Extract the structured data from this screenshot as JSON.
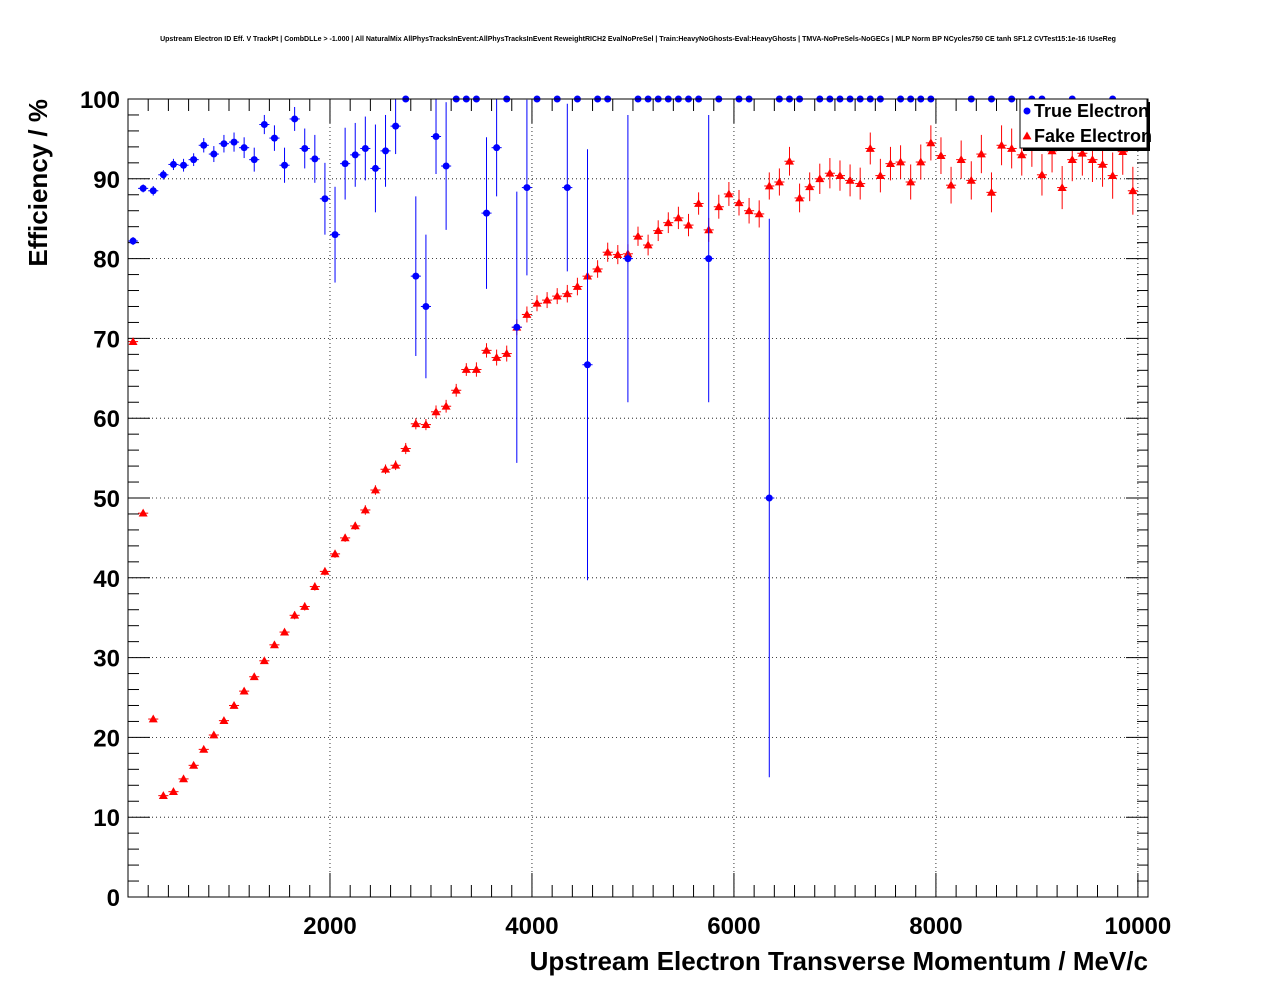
{
  "chart_data": {
    "type": "scatter",
    "title": "Upstream Electron ID Eff. V TrackPt | CombDLLe > -1.000 | All NaturalMix AllPhysTracksInEvent:AllPhysTracksInEvent ReweightRICH2 EvalNoPreSel | Train:HeavyNoGhosts-Eval:HeavyGhosts | TMVA-NoPreSels-NoGECs | MLP Norm BP NCycles750 CE tanh SF1.2 CVTest15:1e-16 !UseReg",
    "xlabel": "Upstream Electron Transverse Momentum / MeV/c",
    "ylabel": "Efficiency / %",
    "xlim": [
      0,
      10100
    ],
    "ylim": [
      0,
      100
    ],
    "x_ticks": [
      "2000",
      "4000",
      "6000",
      "8000",
      "10000"
    ],
    "y_ticks": [
      "0",
      "10",
      "20",
      "30",
      "40",
      "50",
      "60",
      "70",
      "80",
      "90",
      "100"
    ],
    "grid": true,
    "legend_position": "top-right",
    "series": [
      {
        "name": "True Electron",
        "color": "#0000ff",
        "marker": "circle",
        "points": [
          [
            50,
            82.2,
            0.5
          ],
          [
            150,
            88.8,
            0.5
          ],
          [
            250,
            88.5,
            0.6
          ],
          [
            350,
            90.5,
            0.6
          ],
          [
            450,
            91.8,
            0.7
          ],
          [
            550,
            91.7,
            0.8
          ],
          [
            650,
            92.4,
            0.8
          ],
          [
            750,
            94.2,
            0.9
          ],
          [
            850,
            93.1,
            1.0
          ],
          [
            950,
            94.4,
            1.1
          ],
          [
            1050,
            94.6,
            1.2
          ],
          [
            1150,
            93.9,
            1.3
          ],
          [
            1250,
            92.4,
            1.5
          ],
          [
            1350,
            96.8,
            1.2
          ],
          [
            1450,
            95.1,
            1.6
          ],
          [
            1550,
            91.7,
            2.2
          ],
          [
            1650,
            97.5,
            1.5
          ],
          [
            1750,
            93.8,
            2.5
          ],
          [
            1850,
            92.5,
            3.0
          ],
          [
            1950,
            87.5,
            4.5
          ],
          [
            2050,
            83.0,
            6.0
          ],
          [
            2150,
            91.9,
            4.5
          ],
          [
            2250,
            93.0,
            4.0
          ],
          [
            2350,
            93.8,
            4.0
          ],
          [
            2450,
            91.3,
            5.5
          ],
          [
            2550,
            93.5,
            4.5
          ],
          [
            2650,
            96.6,
            3.5
          ],
          [
            2750,
            100,
            0
          ],
          [
            2850,
            77.8,
            10.0
          ],
          [
            2950,
            74.0,
            9.0
          ],
          [
            3050,
            95.3,
            4.7
          ],
          [
            3150,
            91.6,
            8.0
          ],
          [
            3250,
            100,
            0
          ],
          [
            3350,
            100,
            0
          ],
          [
            3450,
            100,
            0
          ],
          [
            3550,
            85.7,
            9.5
          ],
          [
            3650,
            93.9,
            6.1
          ],
          [
            3750,
            100,
            0
          ],
          [
            3850,
            71.4,
            17.0
          ],
          [
            3950,
            88.9,
            11.0
          ],
          [
            4050,
            100,
            0
          ],
          [
            4250,
            100,
            0
          ],
          [
            4350,
            88.9,
            10.5
          ],
          [
            4450,
            100,
            0
          ],
          [
            4550,
            66.7,
            27.0
          ],
          [
            4650,
            100,
            0
          ],
          [
            4750,
            100,
            0
          ],
          [
            4950,
            80.0,
            18.0
          ],
          [
            5050,
            100,
            0
          ],
          [
            5150,
            100,
            0
          ],
          [
            5250,
            100,
            0
          ],
          [
            5350,
            100,
            0
          ],
          [
            5450,
            100,
            0
          ],
          [
            5550,
            100,
            0
          ],
          [
            5650,
            100,
            0
          ],
          [
            5750,
            80.0,
            18.0
          ],
          [
            5850,
            100,
            0
          ],
          [
            6050,
            100,
            0
          ],
          [
            6150,
            100,
            0
          ],
          [
            6350,
            50.0,
            35.0
          ],
          [
            6450,
            100,
            0
          ],
          [
            6550,
            100,
            0
          ],
          [
            6650,
            100,
            0
          ],
          [
            6850,
            100,
            0
          ],
          [
            6950,
            100,
            0
          ],
          [
            7050,
            100,
            0
          ],
          [
            7150,
            100,
            0
          ],
          [
            7250,
            100,
            0
          ],
          [
            7350,
            100,
            0
          ],
          [
            7450,
            100,
            0
          ],
          [
            7650,
            100,
            0
          ],
          [
            7750,
            100,
            0
          ],
          [
            7850,
            100,
            0
          ],
          [
            7950,
            100,
            0
          ],
          [
            8350,
            100,
            0
          ],
          [
            8550,
            100,
            0
          ],
          [
            8750,
            100,
            0
          ],
          [
            8950,
            100,
            0
          ],
          [
            9050,
            100,
            0
          ],
          [
            9350,
            100,
            0
          ],
          [
            9750,
            100,
            0
          ]
        ]
      },
      {
        "name": "Fake Electron",
        "color": "#ff0000",
        "marker": "triangle",
        "points": [
          [
            50,
            69.6,
            0.3
          ],
          [
            150,
            48.1,
            0.3
          ],
          [
            250,
            22.3,
            0.3
          ],
          [
            350,
            12.7,
            0.3
          ],
          [
            450,
            13.2,
            0.3
          ],
          [
            550,
            14.8,
            0.3
          ],
          [
            650,
            16.5,
            0.3
          ],
          [
            750,
            18.5,
            0.3
          ],
          [
            850,
            20.3,
            0.4
          ],
          [
            950,
            22.1,
            0.4
          ],
          [
            1050,
            24.0,
            0.4
          ],
          [
            1150,
            25.8,
            0.4
          ],
          [
            1250,
            27.6,
            0.4
          ],
          [
            1350,
            29.6,
            0.4
          ],
          [
            1450,
            31.6,
            0.4
          ],
          [
            1550,
            33.2,
            0.4
          ],
          [
            1650,
            35.3,
            0.5
          ],
          [
            1750,
            36.4,
            0.5
          ],
          [
            1850,
            38.9,
            0.5
          ],
          [
            1950,
            40.8,
            0.5
          ],
          [
            2050,
            43.0,
            0.5
          ],
          [
            2150,
            45.0,
            0.5
          ],
          [
            2250,
            46.5,
            0.5
          ],
          [
            2350,
            48.5,
            0.6
          ],
          [
            2450,
            51.0,
            0.6
          ],
          [
            2550,
            53.6,
            0.6
          ],
          [
            2650,
            54.1,
            0.6
          ],
          [
            2750,
            56.2,
            0.7
          ],
          [
            2850,
            59.3,
            0.7
          ],
          [
            2950,
            59.2,
            0.7
          ],
          [
            3050,
            60.8,
            0.8
          ],
          [
            3150,
            61.5,
            0.8
          ],
          [
            3250,
            63.5,
            0.8
          ],
          [
            3350,
            66.1,
            0.8
          ],
          [
            3450,
            66.1,
            0.9
          ],
          [
            3550,
            68.5,
            0.9
          ],
          [
            3650,
            67.6,
            1.0
          ],
          [
            3750,
            68.1,
            1.0
          ],
          [
            3850,
            71.4,
            1.0
          ],
          [
            3950,
            73.0,
            1.0
          ],
          [
            4050,
            74.4,
            1.0
          ],
          [
            4150,
            74.8,
            1.0
          ],
          [
            4250,
            75.3,
            1.0
          ],
          [
            4350,
            75.6,
            1.1
          ],
          [
            4450,
            76.5,
            1.1
          ],
          [
            4550,
            77.8,
            1.1
          ],
          [
            4650,
            78.7,
            1.1
          ],
          [
            4750,
            80.8,
            1.2
          ],
          [
            4850,
            80.5,
            1.2
          ],
          [
            4950,
            80.6,
            1.2
          ],
          [
            5050,
            82.8,
            1.2
          ],
          [
            5150,
            81.7,
            1.3
          ],
          [
            5250,
            83.5,
            1.3
          ],
          [
            5350,
            84.5,
            1.3
          ],
          [
            5450,
            85.1,
            1.4
          ],
          [
            5550,
            84.2,
            1.4
          ],
          [
            5650,
            86.9,
            1.4
          ],
          [
            5750,
            83.6,
            1.5
          ],
          [
            5850,
            86.5,
            1.5
          ],
          [
            5950,
            88.1,
            1.5
          ],
          [
            6050,
            87.0,
            1.6
          ],
          [
            6150,
            86.0,
            1.6
          ],
          [
            6250,
            85.6,
            1.7
          ],
          [
            6350,
            89.1,
            1.7
          ],
          [
            6450,
            89.6,
            1.7
          ],
          [
            6550,
            92.2,
            1.8
          ],
          [
            6650,
            87.6,
            1.8
          ],
          [
            6750,
            89.0,
            1.8
          ],
          [
            6850,
            90.0,
            1.9
          ],
          [
            6950,
            90.7,
            1.9
          ],
          [
            7050,
            90.4,
            1.9
          ],
          [
            7150,
            89.8,
            2.0
          ],
          [
            7250,
            89.4,
            2.0
          ],
          [
            7350,
            93.8,
            2.0
          ],
          [
            7450,
            90.4,
            2.1
          ],
          [
            7550,
            91.9,
            2.1
          ],
          [
            7650,
            92.1,
            2.1
          ],
          [
            7750,
            89.6,
            2.2
          ],
          [
            7850,
            92.1,
            2.2
          ],
          [
            7950,
            94.5,
            2.2
          ],
          [
            8050,
            92.9,
            2.3
          ],
          [
            8150,
            89.2,
            2.3
          ],
          [
            8250,
            92.4,
            2.4
          ],
          [
            8350,
            89.8,
            2.4
          ],
          [
            8450,
            93.1,
            2.4
          ],
          [
            8550,
            88.3,
            2.5
          ],
          [
            8650,
            94.2,
            2.5
          ],
          [
            8750,
            93.8,
            2.5
          ],
          [
            8850,
            93.0,
            2.6
          ],
          [
            8950,
            94.1,
            2.6
          ],
          [
            9050,
            90.5,
            2.6
          ],
          [
            9150,
            93.5,
            2.7
          ],
          [
            9250,
            88.9,
            2.7
          ],
          [
            9350,
            92.4,
            2.7
          ],
          [
            9450,
            93.2,
            2.8
          ],
          [
            9550,
            92.4,
            2.8
          ],
          [
            9650,
            91.8,
            2.8
          ],
          [
            9750,
            90.4,
            2.9
          ],
          [
            9850,
            93.4,
            2.9
          ],
          [
            9950,
            88.5,
            3.0
          ]
        ]
      }
    ]
  }
}
